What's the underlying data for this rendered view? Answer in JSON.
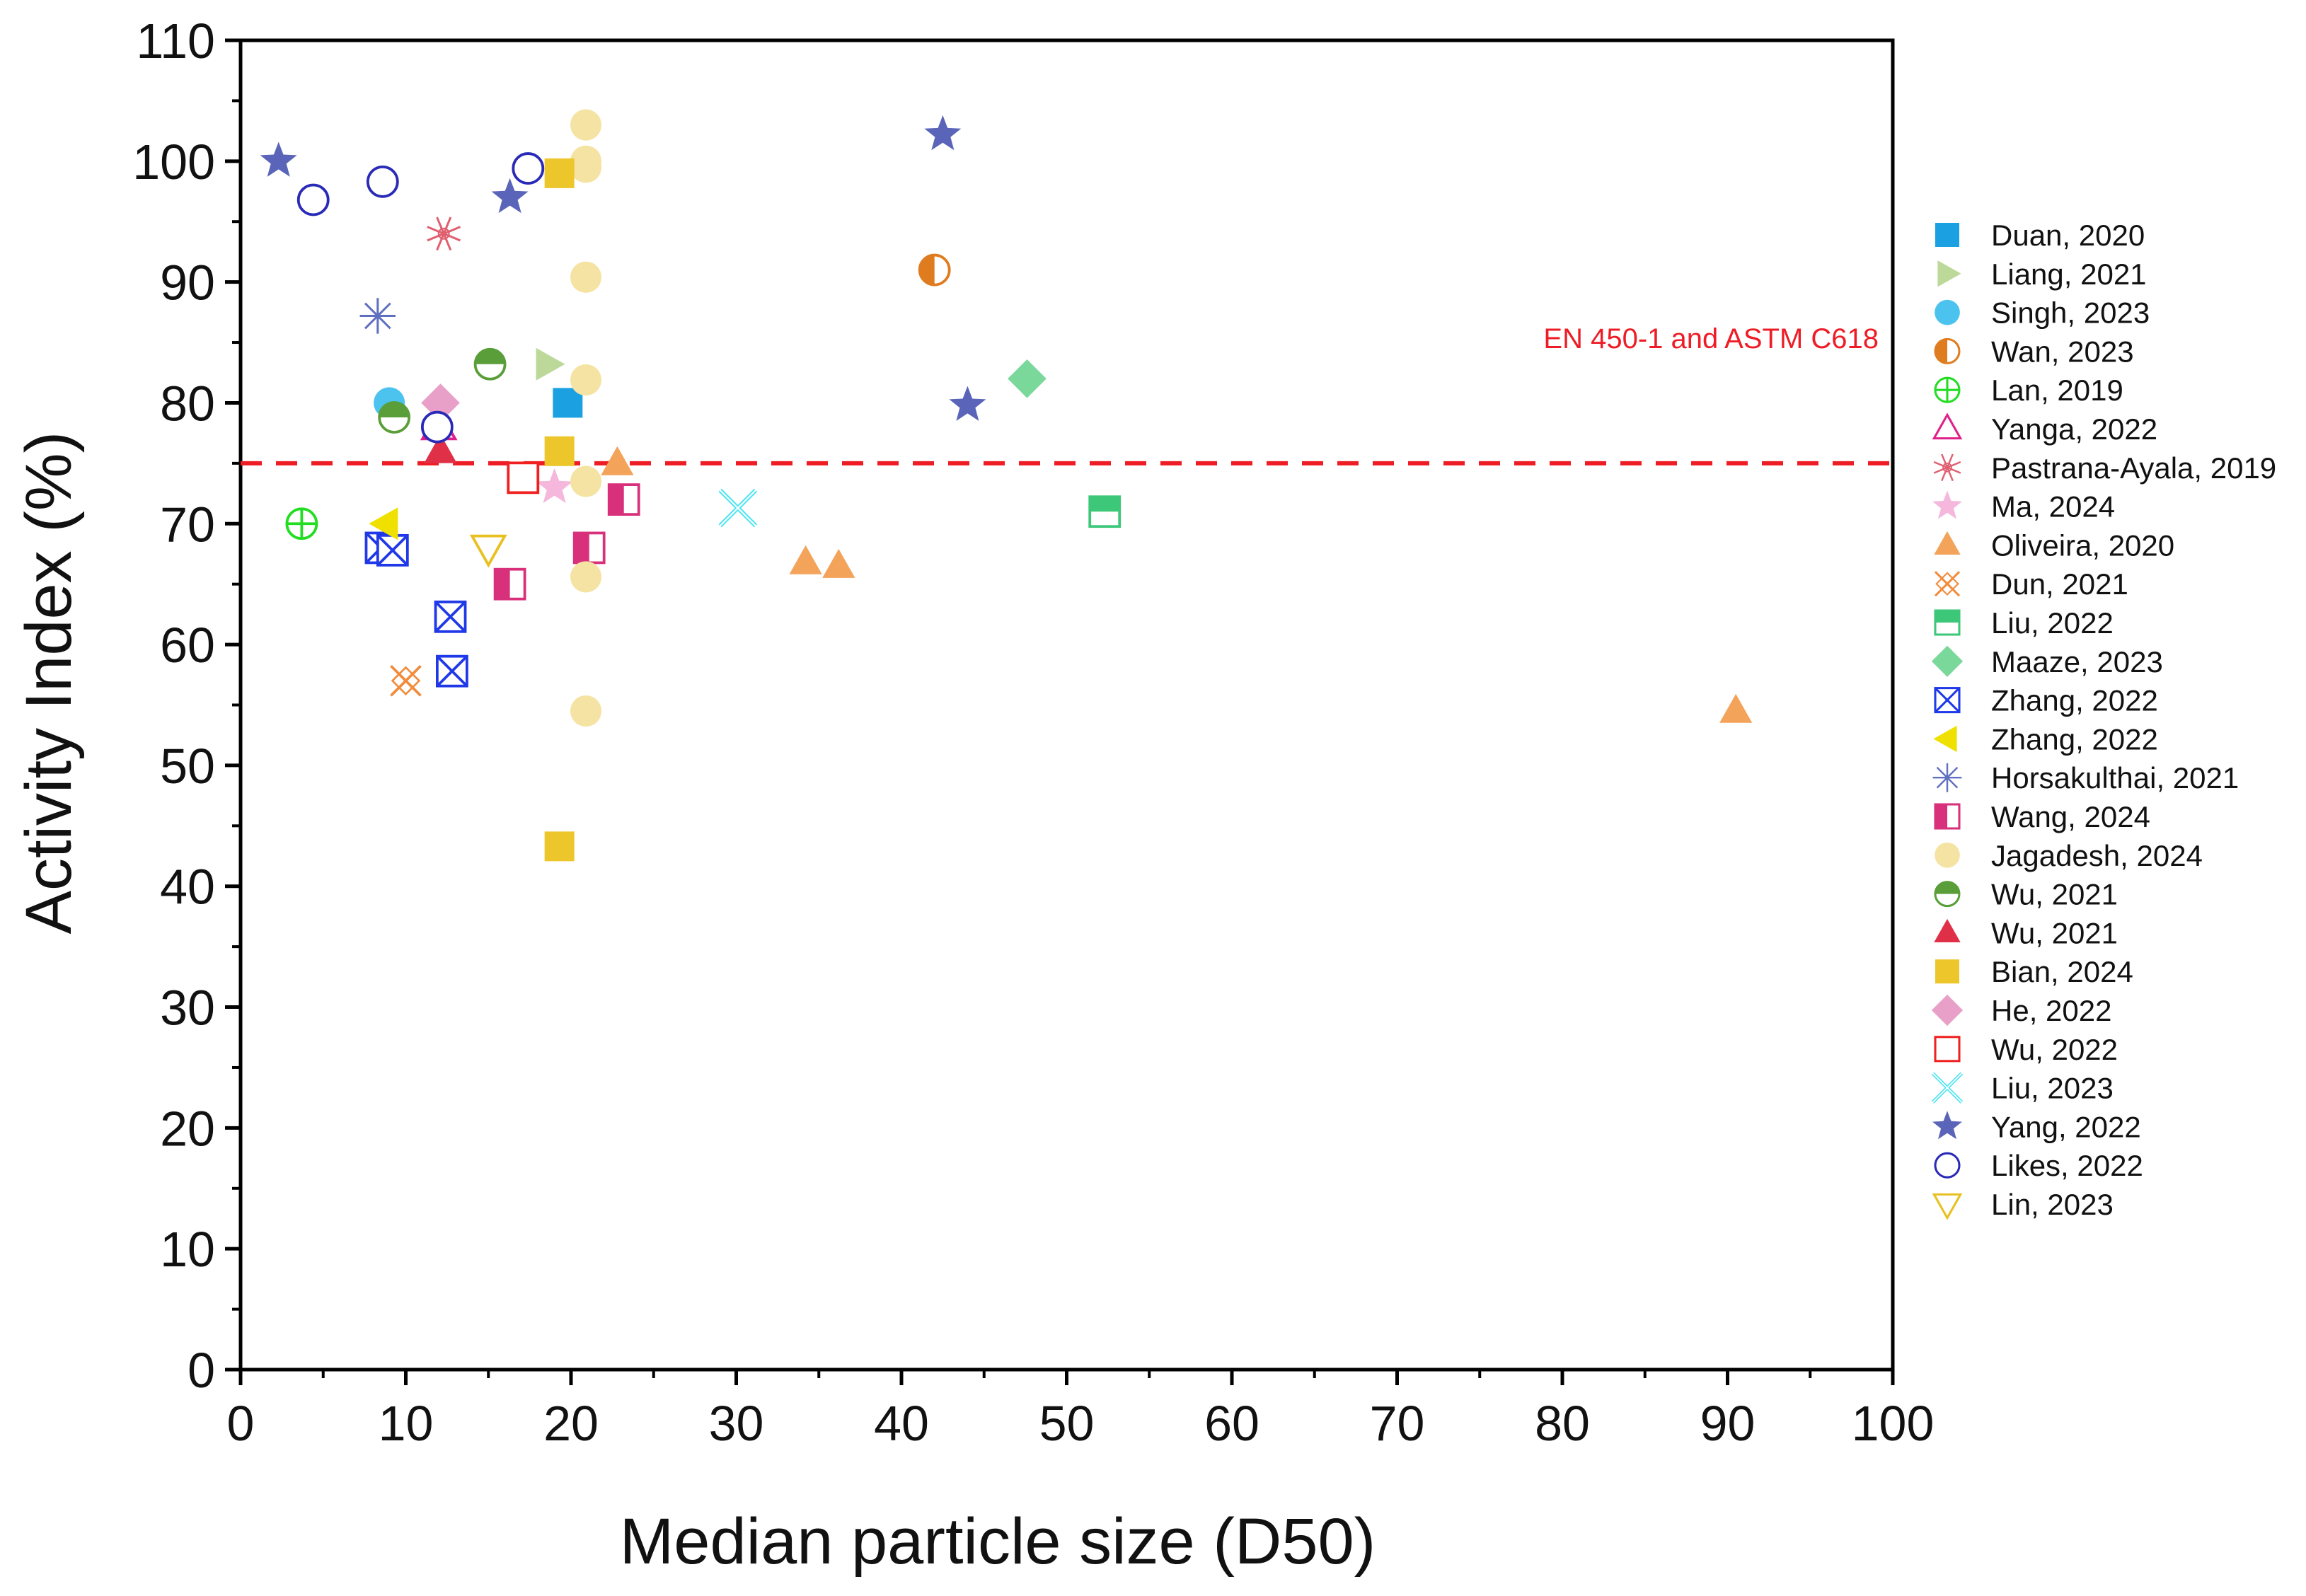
{
  "chart_data": {
    "type": "scatter",
    "xlabel": "Median particle size (D50)",
    "ylabel": "Activity Index (%)",
    "xlim": [
      0,
      100
    ],
    "ylim": [
      0,
      110
    ],
    "x_ticks": [
      0,
      10,
      20,
      30,
      40,
      50,
      60,
      70,
      80,
      90,
      100
    ],
    "y_ticks": [
      0,
      10,
      20,
      30,
      40,
      50,
      60,
      70,
      80,
      90,
      100,
      110
    ],
    "grid": false,
    "legend_position": "right",
    "reference_line": {
      "y": 75,
      "label": "EN 450-1 and ASTM C618",
      "color": "#ee1c25",
      "style": "dashed"
    },
    "series": [
      {
        "name": "Duan, 2020",
        "marker": "square",
        "color": "#1ba1e2",
        "points": [
          [
            19.8,
            80
          ]
        ]
      },
      {
        "name": "Liang, 2021",
        "marker": "triangle-right",
        "color": "#bcd99a",
        "points": [
          [
            18.6,
            83.2
          ]
        ]
      },
      {
        "name": "Singh, 2023",
        "marker": "circle",
        "color": "#4cc3ee",
        "points": [
          [
            9.0,
            80
          ]
        ]
      },
      {
        "name": "Wan, 2023",
        "marker": "circle-half-left",
        "color": "#e07c20",
        "points": [
          [
            42.0,
            91
          ]
        ]
      },
      {
        "name": "Lan, 2019",
        "marker": "circle-plus",
        "color": "#22dd22",
        "points": [
          [
            3.7,
            70
          ]
        ]
      },
      {
        "name": "Yanga, 2022",
        "marker": "triangle-open",
        "color": "#e0208a",
        "points": [
          [
            12.0,
            78
          ]
        ]
      },
      {
        "name": "Pastrana-Ayala, 2019",
        "marker": "asterisk-x",
        "color": "#e06070",
        "points": [
          [
            12.3,
            94
          ]
        ]
      },
      {
        "name": "Ma, 2024",
        "marker": "star",
        "color": "#f5b8dc",
        "points": [
          [
            19.0,
            73
          ]
        ]
      },
      {
        "name": "Oliveira, 2020",
        "marker": "triangle",
        "color": "#f3a35a",
        "points": [
          [
            22.8,
            75
          ],
          [
            34.2,
            66.8
          ],
          [
            36.2,
            66.5
          ],
          [
            90.5,
            54.5
          ]
        ]
      },
      {
        "name": "Dun, 2021",
        "marker": "x-diamond",
        "color": "#f08c3c",
        "points": [
          [
            10.0,
            57
          ]
        ]
      },
      {
        "name": "Liu, 2022",
        "marker": "square-half-top",
        "color": "#3cc878",
        "points": [
          [
            52.3,
            71
          ]
        ]
      },
      {
        "name": "Maaze, 2023",
        "marker": "diamond",
        "color": "#7ad89a",
        "points": [
          [
            47.6,
            82
          ]
        ]
      },
      {
        "name": "Zhang, 2022",
        "marker": "square-x",
        "color": "#1f38e8",
        "points": [
          [
            8.5,
            68
          ],
          [
            9.2,
            67.8
          ],
          [
            12.7,
            62.3
          ],
          [
            12.8,
            57.8
          ]
        ]
      },
      {
        "name": "Zhang, 2022",
        "marker": "triangle-left",
        "color": "#f0e000",
        "points": [
          [
            8.8,
            70
          ]
        ]
      },
      {
        "name": "Horsakulthai, 2021",
        "marker": "asterisk",
        "color": "#6070c0",
        "points": [
          [
            8.3,
            87.2
          ]
        ]
      },
      {
        "name": "Wang, 2024",
        "marker": "square-half-left",
        "color": "#d8307a",
        "points": [
          [
            16.3,
            65
          ],
          [
            21.1,
            68
          ],
          [
            23.2,
            72
          ]
        ]
      },
      {
        "name": "Jagadesh, 2024",
        "marker": "circle",
        "color": "#f5e3a3",
        "points": [
          [
            20.9,
            103
          ],
          [
            20.9,
            100
          ],
          [
            20.9,
            99.5
          ],
          [
            20.9,
            90.4
          ],
          [
            20.9,
            81.9
          ],
          [
            20.9,
            73.5
          ],
          [
            20.9,
            65.6
          ],
          [
            20.9,
            54.5
          ]
        ]
      },
      {
        "name": "Wu, 2021",
        "marker": "circle-half-top",
        "color": "#5a9e3a",
        "points": [
          [
            15.1,
            83.2
          ],
          [
            9.3,
            78.8
          ]
        ]
      },
      {
        "name": "Wu, 2021",
        "marker": "triangle",
        "color": "#e03048",
        "points": [
          [
            12.1,
            76
          ]
        ]
      },
      {
        "name": "Bian, 2024",
        "marker": "square",
        "color": "#ecc62a",
        "points": [
          [
            19.3,
            99
          ],
          [
            19.3,
            76
          ],
          [
            19.3,
            43.3
          ]
        ]
      },
      {
        "name": "He, 2022",
        "marker": "diamond",
        "color": "#e8a0c8",
        "points": [
          [
            12.1,
            80
          ]
        ]
      },
      {
        "name": "Wu, 2022",
        "marker": "square-open",
        "color": "#f02020",
        "points": [
          [
            17.1,
            73.8
          ]
        ]
      },
      {
        "name": "Liu, 2023",
        "marker": "x-open",
        "color": "#44e4f0",
        "points": [
          [
            30.1,
            71.3
          ]
        ]
      },
      {
        "name": "Yang, 2022",
        "marker": "star",
        "color": "#5a64b8",
        "points": [
          [
            2.3,
            100
          ],
          [
            16.3,
            97
          ],
          [
            42.5,
            102.2
          ],
          [
            44.0,
            79.8
          ]
        ]
      },
      {
        "name": "Likes, 2022",
        "marker": "circle-open",
        "color": "#2a2ab8",
        "points": [
          [
            4.4,
            96.8
          ],
          [
            8.6,
            98.3
          ],
          [
            17.4,
            99.4
          ],
          [
            11.9,
            78
          ]
        ]
      },
      {
        "name": "Lin, 2023",
        "marker": "triangle-down-open",
        "color": "#e8c020",
        "points": [
          [
            15.0,
            68
          ]
        ]
      }
    ]
  }
}
